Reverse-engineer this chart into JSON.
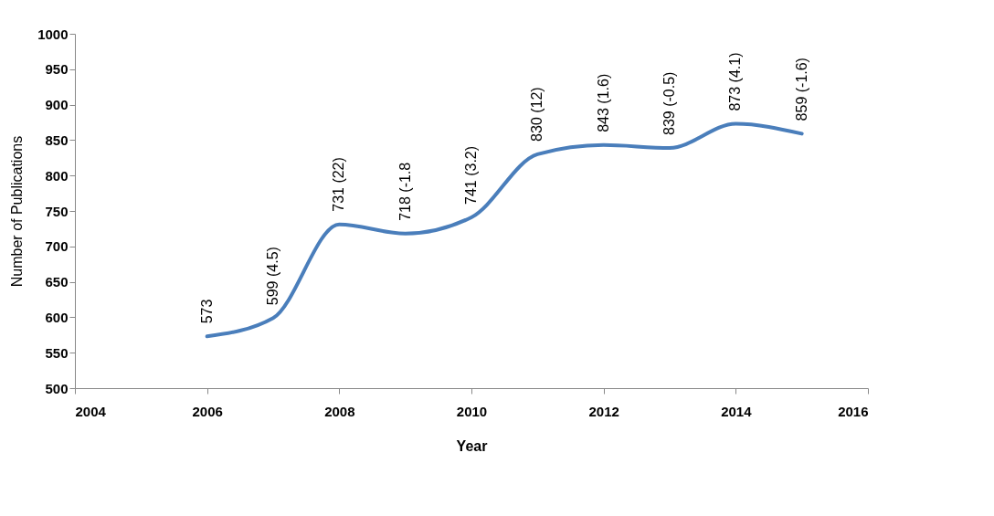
{
  "chart_data": {
    "type": "line",
    "xlabel": "Year",
    "ylabel": "Number of Publications",
    "x": [
      2006,
      2007,
      2008,
      2009,
      2010,
      2011,
      2012,
      2013,
      2014,
      2015
    ],
    "series": [
      {
        "color": "#4a7ebb",
        "values": [
          573,
          599,
          731,
          718,
          741,
          830,
          843,
          839,
          873,
          859
        ],
        "value_labels": [
          "573",
          "599 (4.5)",
          "731 (22)",
          "718 (-1.8",
          "741 (3.2)",
          "830 (12)",
          "843 (1.6)",
          "839 (-0.5)",
          "873 (4.1)",
          "859 (-1.6)"
        ]
      }
    ],
    "xlim": [
      2004,
      2016
    ],
    "xticks": [
      2004,
      2006,
      2008,
      2010,
      2012,
      2014,
      2016
    ],
    "ylim": [
      500,
      1000
    ],
    "yticks": [
      500,
      550,
      600,
      650,
      700,
      750,
      800,
      850,
      900,
      950,
      1000
    ],
    "grid": false,
    "marker": "none",
    "line_style": "solid"
  }
}
